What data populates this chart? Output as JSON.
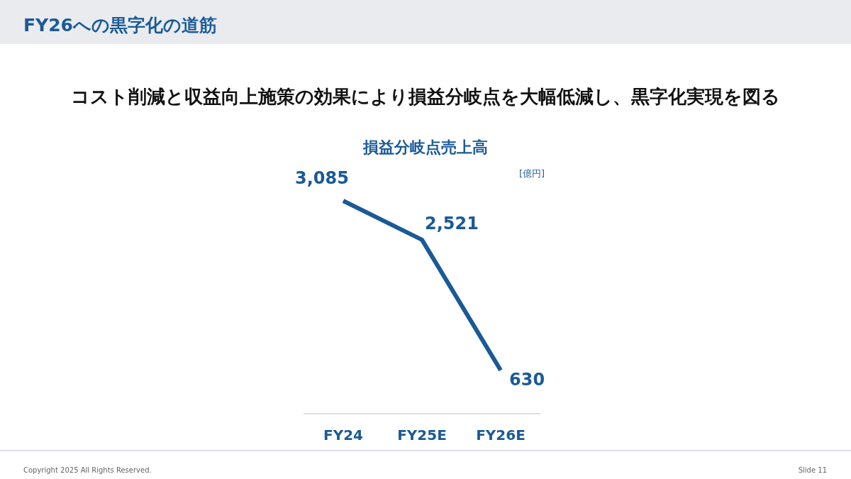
{
  "chart_data": {
    "type": "line",
    "title": "損益分岐点売上高",
    "ylabel": "[億円]",
    "annotations": [
      "FY26への黒字化の道筋",
      "コスト削減と収益向上施策の効果により損益分岐点を大幅低減し、黒字化実現を図る",
      "Copyright 2025 All Rights Reserved.",
      "Slide 11"
    ],
    "categories": [
      "FY24",
      "FY25E",
      "FY26E"
    ],
    "series": [
      {
        "color": "#1a5a96",
        "values": [
          3085,
          2521,
          630
        ],
        "value_labels": [
          "3,085",
          "2,521",
          "630"
        ]
      }
    ],
    "marker": "none"
  }
}
